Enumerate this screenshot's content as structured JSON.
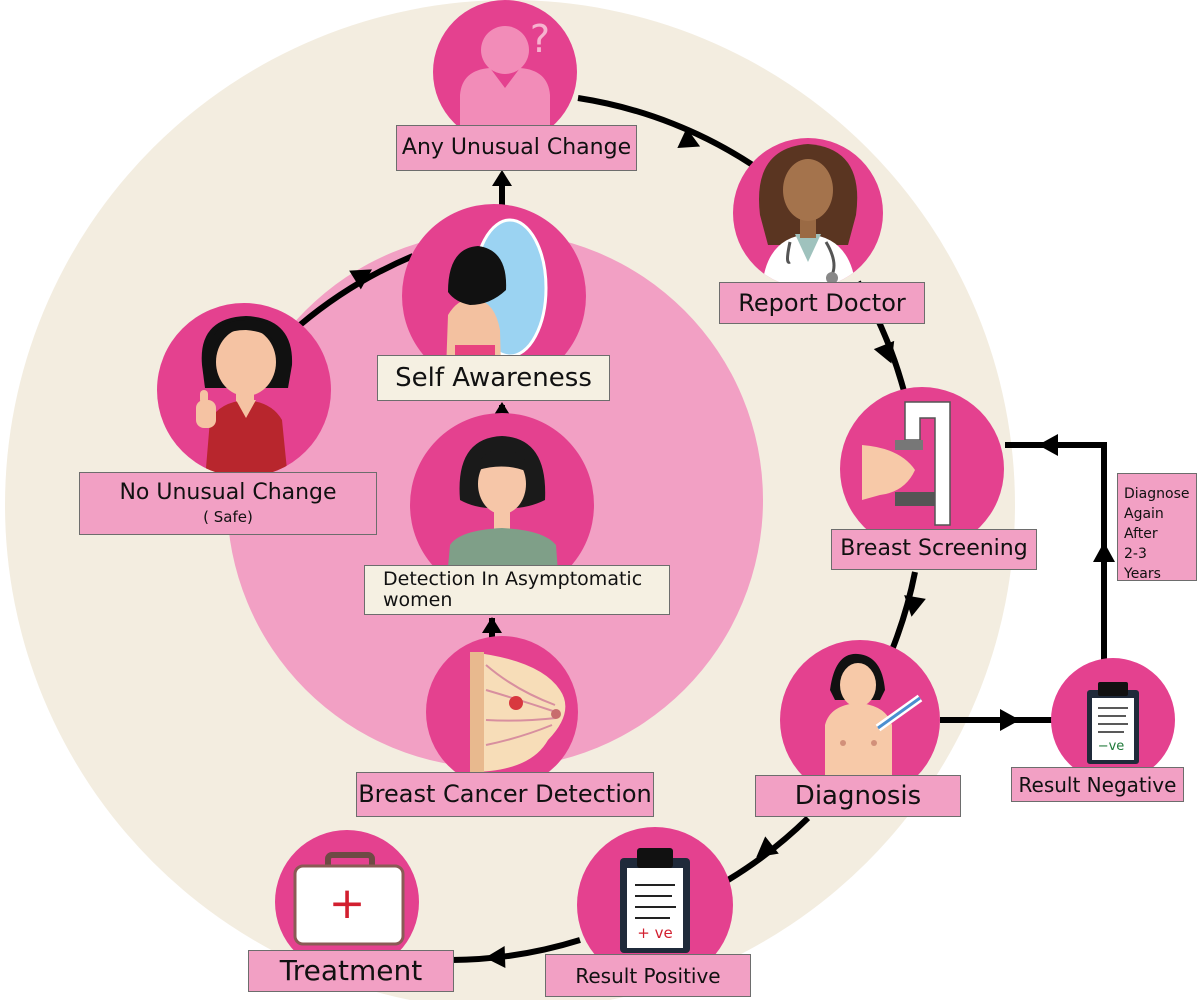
{
  "labels": {
    "any_unusual_change": "Any Unusual Change",
    "report_doctor": "Report Doctor",
    "breast_screening": "Breast Screening",
    "diagnosis": "Diagnosis",
    "result_negative": "Result Negative",
    "result_positive": "Result Positive",
    "treatment": "Treatment",
    "breast_cancer_detection": "Breast Cancer Detection",
    "detection_asymptomatic": "Detection In  Asymptomatic\nwomen",
    "self_awareness": "Self Awareness",
    "no_unusual_change": "No Unusual Change",
    "no_unusual_change_sub": "( Safe)"
  },
  "side_note": {
    "lines": [
      "Diagnose",
      "Again",
      "After",
      "2-3",
      "Years"
    ]
  },
  "icon_text": {
    "question_mark": "?",
    "plus_sign": "+",
    "negative_result": "−ve",
    "positive_result": "+ ve"
  },
  "colors": {
    "cream_background": "#f3ede0",
    "inner_pink": "#f2a0c4",
    "node_magenta": "#e4418f",
    "label_pink": "#f2a0c4",
    "arrow": "#000000"
  }
}
